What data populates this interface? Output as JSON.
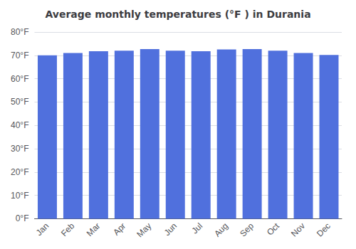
{
  "chart_data": {
    "type": "bar",
    "title": "Average monthly temperatures (°F ) in Durania",
    "categories": [
      "Jan",
      "Feb",
      "Mar",
      "Apr",
      "May",
      "Jun",
      "Jul",
      "Aug",
      "Sep",
      "Oct",
      "Nov",
      "Dec"
    ],
    "values": [
      70.0,
      71.0,
      71.8,
      72.0,
      72.7,
      72.0,
      71.8,
      72.5,
      72.7,
      72.0,
      71.0,
      70.2
    ],
    "ylim": [
      0,
      80
    ],
    "yticks": [
      {
        "value": 0,
        "label": "0°F"
      },
      {
        "value": 10,
        "label": "10°F"
      },
      {
        "value": 20,
        "label": "20°F"
      },
      {
        "value": 30,
        "label": "30°F"
      },
      {
        "value": 40,
        "label": "40°F"
      },
      {
        "value": 50,
        "label": "50°F"
      },
      {
        "value": 60,
        "label": "60°F"
      },
      {
        "value": 70,
        "label": "70°F"
      },
      {
        "value": 80,
        "label": "80°F"
      }
    ],
    "grid": true
  }
}
